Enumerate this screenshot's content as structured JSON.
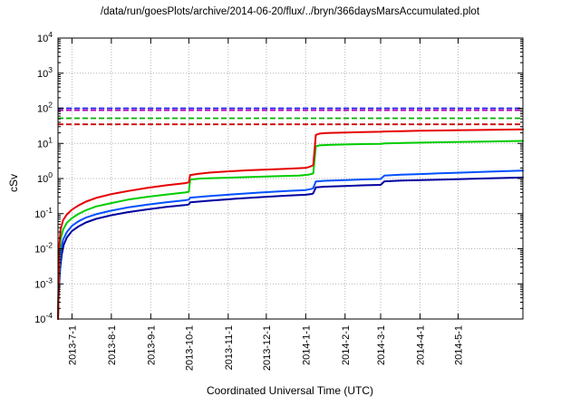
{
  "chart_data": {
    "type": "line",
    "title": "/data/run/goesPlots/archive/2014-06-20/flux/../bryn/366daysMarsAccumulated.plot",
    "xlabel": "Coordinated Universal Time (UTC)",
    "ylabel": "cSv",
    "grid": true,
    "legend": "none",
    "x_axis": {
      "unit": "days since 2013-06-20",
      "range": [
        0,
        366
      ],
      "ticks": [
        {
          "day": 11,
          "label": "2013-7-1"
        },
        {
          "day": 42,
          "label": "2013-8-1"
        },
        {
          "day": 73,
          "label": "2013-9-1"
        },
        {
          "day": 103,
          "label": "2013-10-1"
        },
        {
          "day": 134,
          "label": "2013-11-1"
        },
        {
          "day": 164,
          "label": "2013-12-1"
        },
        {
          "day": 195,
          "label": "2014-1-1"
        },
        {
          "day": 226,
          "label": "2014-2-1"
        },
        {
          "day": 254,
          "label": "2014-3-1"
        },
        {
          "day": 285,
          "label": "2014-4-1"
        },
        {
          "day": 315,
          "label": "2014-5-1"
        }
      ]
    },
    "y_axis": {
      "scale": "log10",
      "range": [
        0.0001,
        10000
      ],
      "ticks": [
        {
          "value": 0.0001,
          "base": "10",
          "exp": "-4"
        },
        {
          "value": 0.001,
          "base": "10",
          "exp": "-3"
        },
        {
          "value": 0.01,
          "base": "10",
          "exp": "-2"
        },
        {
          "value": 0.1,
          "base": "10",
          "exp": "-1"
        },
        {
          "value": 1,
          "base": "10",
          "exp": "0"
        },
        {
          "value": 10,
          "base": "10",
          "exp": "1"
        },
        {
          "value": 100,
          "base": "10",
          "exp": "2"
        },
        {
          "value": 1000,
          "base": "10",
          "exp": "3"
        },
        {
          "value": 10000,
          "base": "10",
          "exp": "4"
        }
      ]
    },
    "threshold_lines": [
      {
        "name": "limit-blue",
        "color": "#2222ee",
        "style": "dashed",
        "value": 100
      },
      {
        "name": "limit-magenta",
        "color": "#b400b4",
        "style": "dashed",
        "value": 88
      },
      {
        "name": "limit-green",
        "color": "#00b400",
        "style": "dashed",
        "value": 52
      },
      {
        "name": "limit-red",
        "color": "#cc0000",
        "style": "dashed",
        "value": 35
      }
    ],
    "series": [
      {
        "name": "red-accumulated-dose",
        "color": "#e60000",
        "points": [
          [
            0,
            0.0001
          ],
          [
            0.4,
            0.001
          ],
          [
            1,
            0.012
          ],
          [
            2,
            0.035
          ],
          [
            4,
            0.065
          ],
          [
            7,
            0.095
          ],
          [
            11,
            0.13
          ],
          [
            16,
            0.17
          ],
          [
            22,
            0.22
          ],
          [
            30,
            0.28
          ],
          [
            42,
            0.36
          ],
          [
            55,
            0.44
          ],
          [
            70,
            0.54
          ],
          [
            85,
            0.64
          ],
          [
            100,
            0.74
          ],
          [
            103,
            0.78
          ],
          [
            104,
            1.25
          ],
          [
            110,
            1.35
          ],
          [
            120,
            1.48
          ],
          [
            134,
            1.6
          ],
          [
            150,
            1.72
          ],
          [
            164,
            1.8
          ],
          [
            180,
            1.9
          ],
          [
            195,
            2.0
          ],
          [
            198,
            2.15
          ],
          [
            200,
            2.3
          ],
          [
            201,
            2.45
          ],
          [
            203,
            17.5
          ],
          [
            206,
            19
          ],
          [
            212,
            19.8
          ],
          [
            226,
            20.4
          ],
          [
            240,
            21
          ],
          [
            254,
            21.4
          ],
          [
            257,
            21.9
          ],
          [
            270,
            22.4
          ],
          [
            285,
            22.9
          ],
          [
            300,
            23.3
          ],
          [
            320,
            23.9
          ],
          [
            340,
            24.4
          ],
          [
            366,
            25
          ]
        ]
      },
      {
        "name": "green-accumulated-dose",
        "color": "#00cc00",
        "points": [
          [
            0,
            0.0001
          ],
          [
            0.5,
            0.001
          ],
          [
            1.2,
            0.006
          ],
          [
            2,
            0.018
          ],
          [
            4,
            0.035
          ],
          [
            7,
            0.055
          ],
          [
            11,
            0.075
          ],
          [
            16,
            0.098
          ],
          [
            22,
            0.125
          ],
          [
            30,
            0.16
          ],
          [
            42,
            0.2
          ],
          [
            55,
            0.25
          ],
          [
            70,
            0.3
          ],
          [
            85,
            0.35
          ],
          [
            100,
            0.4
          ],
          [
            103,
            0.42
          ],
          [
            104,
            0.93
          ],
          [
            112,
            1.0
          ],
          [
            130,
            1.05
          ],
          [
            150,
            1.1
          ],
          [
            170,
            1.16
          ],
          [
            190,
            1.22
          ],
          [
            197,
            1.28
          ],
          [
            200,
            1.35
          ],
          [
            201,
            1.42
          ],
          [
            203,
            8.3
          ],
          [
            206,
            8.8
          ],
          [
            215,
            9.1
          ],
          [
            230,
            9.4
          ],
          [
            245,
            9.6
          ],
          [
            254,
            9.75
          ],
          [
            257,
            10.0
          ],
          [
            272,
            10.3
          ],
          [
            290,
            10.6
          ],
          [
            310,
            10.9
          ],
          [
            335,
            11.3
          ],
          [
            366,
            11.8
          ]
        ]
      },
      {
        "name": "blue-accumulated-dose",
        "color": "#0050ff",
        "points": [
          [
            0,
            0.0001
          ],
          [
            0.6,
            0.001
          ],
          [
            1.5,
            0.004
          ],
          [
            2.5,
            0.009
          ],
          [
            4,
            0.018
          ],
          [
            7,
            0.03
          ],
          [
            11,
            0.045
          ],
          [
            16,
            0.06
          ],
          [
            22,
            0.077
          ],
          [
            30,
            0.096
          ],
          [
            42,
            0.122
          ],
          [
            55,
            0.15
          ],
          [
            70,
            0.18
          ],
          [
            85,
            0.21
          ],
          [
            100,
            0.24
          ],
          [
            103,
            0.25
          ],
          [
            104,
            0.285
          ],
          [
            120,
            0.32
          ],
          [
            140,
            0.36
          ],
          [
            160,
            0.4
          ],
          [
            180,
            0.44
          ],
          [
            195,
            0.47
          ],
          [
            200,
            0.51
          ],
          [
            201,
            0.54
          ],
          [
            203,
            0.82
          ],
          [
            210,
            0.86
          ],
          [
            226,
            0.9
          ],
          [
            240,
            0.94
          ],
          [
            254,
            0.97
          ],
          [
            257,
            1.22
          ],
          [
            270,
            1.28
          ],
          [
            285,
            1.34
          ],
          [
            300,
            1.4
          ],
          [
            320,
            1.48
          ],
          [
            340,
            1.57
          ],
          [
            366,
            1.68
          ]
        ]
      },
      {
        "name": "darkblue-accumulated-dose",
        "color": "#0000a0",
        "points": [
          [
            0,
            0.0001
          ],
          [
            0.7,
            0.0008
          ],
          [
            1.8,
            0.003
          ],
          [
            3,
            0.007
          ],
          [
            4.5,
            0.013
          ],
          [
            7,
            0.021
          ],
          [
            11,
            0.032
          ],
          [
            16,
            0.043
          ],
          [
            22,
            0.056
          ],
          [
            30,
            0.071
          ],
          [
            42,
            0.09
          ],
          [
            55,
            0.11
          ],
          [
            70,
            0.132
          ],
          [
            85,
            0.155
          ],
          [
            100,
            0.175
          ],
          [
            103,
            0.183
          ],
          [
            104,
            0.21
          ],
          [
            120,
            0.235
          ],
          [
            140,
            0.265
          ],
          [
            160,
            0.295
          ],
          [
            180,
            0.325
          ],
          [
            195,
            0.345
          ],
          [
            200,
            0.365
          ],
          [
            201,
            0.385
          ],
          [
            203,
            0.56
          ],
          [
            210,
            0.585
          ],
          [
            226,
            0.615
          ],
          [
            240,
            0.64
          ],
          [
            254,
            0.66
          ],
          [
            257,
            0.83
          ],
          [
            270,
            0.87
          ],
          [
            285,
            0.9
          ],
          [
            300,
            0.93
          ],
          [
            320,
            0.97
          ],
          [
            340,
            1.01
          ],
          [
            366,
            1.07
          ]
        ]
      }
    ]
  }
}
